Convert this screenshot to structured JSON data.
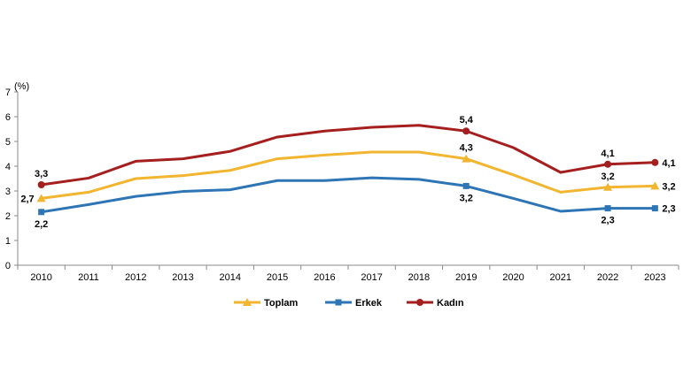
{
  "chart_data": {
    "type": "line",
    "unit_label": "(%)",
    "x": [
      "2010",
      "2011",
      "2012",
      "2013",
      "2014",
      "2015",
      "2016",
      "2017",
      "2018",
      "2019",
      "2020",
      "2021",
      "2022",
      "2023"
    ],
    "ylim": [
      0,
      7
    ],
    "yticks": [
      "0",
      "1",
      "2",
      "3",
      "4",
      "5",
      "6",
      "7"
    ],
    "grid": false,
    "legend_position": "bottom",
    "series": [
      {
        "name": "Toplam",
        "color": "#F2B530",
        "marker": "triangle",
        "values": [
          2.7,
          2.95,
          3.5,
          3.62,
          3.83,
          4.3,
          4.45,
          4.57,
          4.57,
          4.3,
          3.65,
          2.95,
          3.15,
          3.2
        ],
        "labels": [
          {
            "index": 0,
            "text": "2,7",
            "pos": "left"
          },
          {
            "index": 9,
            "text": "4,3",
            "pos": "above"
          },
          {
            "index": 12,
            "text": "3,2",
            "pos": "above"
          },
          {
            "index": 13,
            "text": "3,2",
            "pos": "right"
          }
        ]
      },
      {
        "name": "Erkek",
        "color": "#2E75B6",
        "marker": "square",
        "values": [
          2.15,
          2.45,
          2.78,
          2.98,
          3.05,
          3.42,
          3.42,
          3.53,
          3.47,
          3.2,
          2.7,
          2.18,
          2.3,
          2.3
        ],
        "labels": [
          {
            "index": 0,
            "text": "2,2",
            "pos": "below"
          },
          {
            "index": 9,
            "text": "3,2",
            "pos": "below"
          },
          {
            "index": 12,
            "text": "2,3",
            "pos": "below"
          },
          {
            "index": 13,
            "text": "2,3",
            "pos": "right"
          }
        ]
      },
      {
        "name": "Kadın",
        "color": "#A51F1F",
        "marker": "circle",
        "values": [
          3.25,
          3.52,
          4.2,
          4.3,
          4.6,
          5.18,
          5.42,
          5.57,
          5.65,
          5.42,
          4.75,
          3.75,
          4.08,
          4.15
        ],
        "labels": [
          {
            "index": 0,
            "text": "3,3",
            "pos": "above"
          },
          {
            "index": 9,
            "text": "5,4",
            "pos": "above"
          },
          {
            "index": 12,
            "text": "4,1",
            "pos": "above"
          },
          {
            "index": 13,
            "text": "4,1",
            "pos": "right"
          }
        ]
      }
    ]
  }
}
